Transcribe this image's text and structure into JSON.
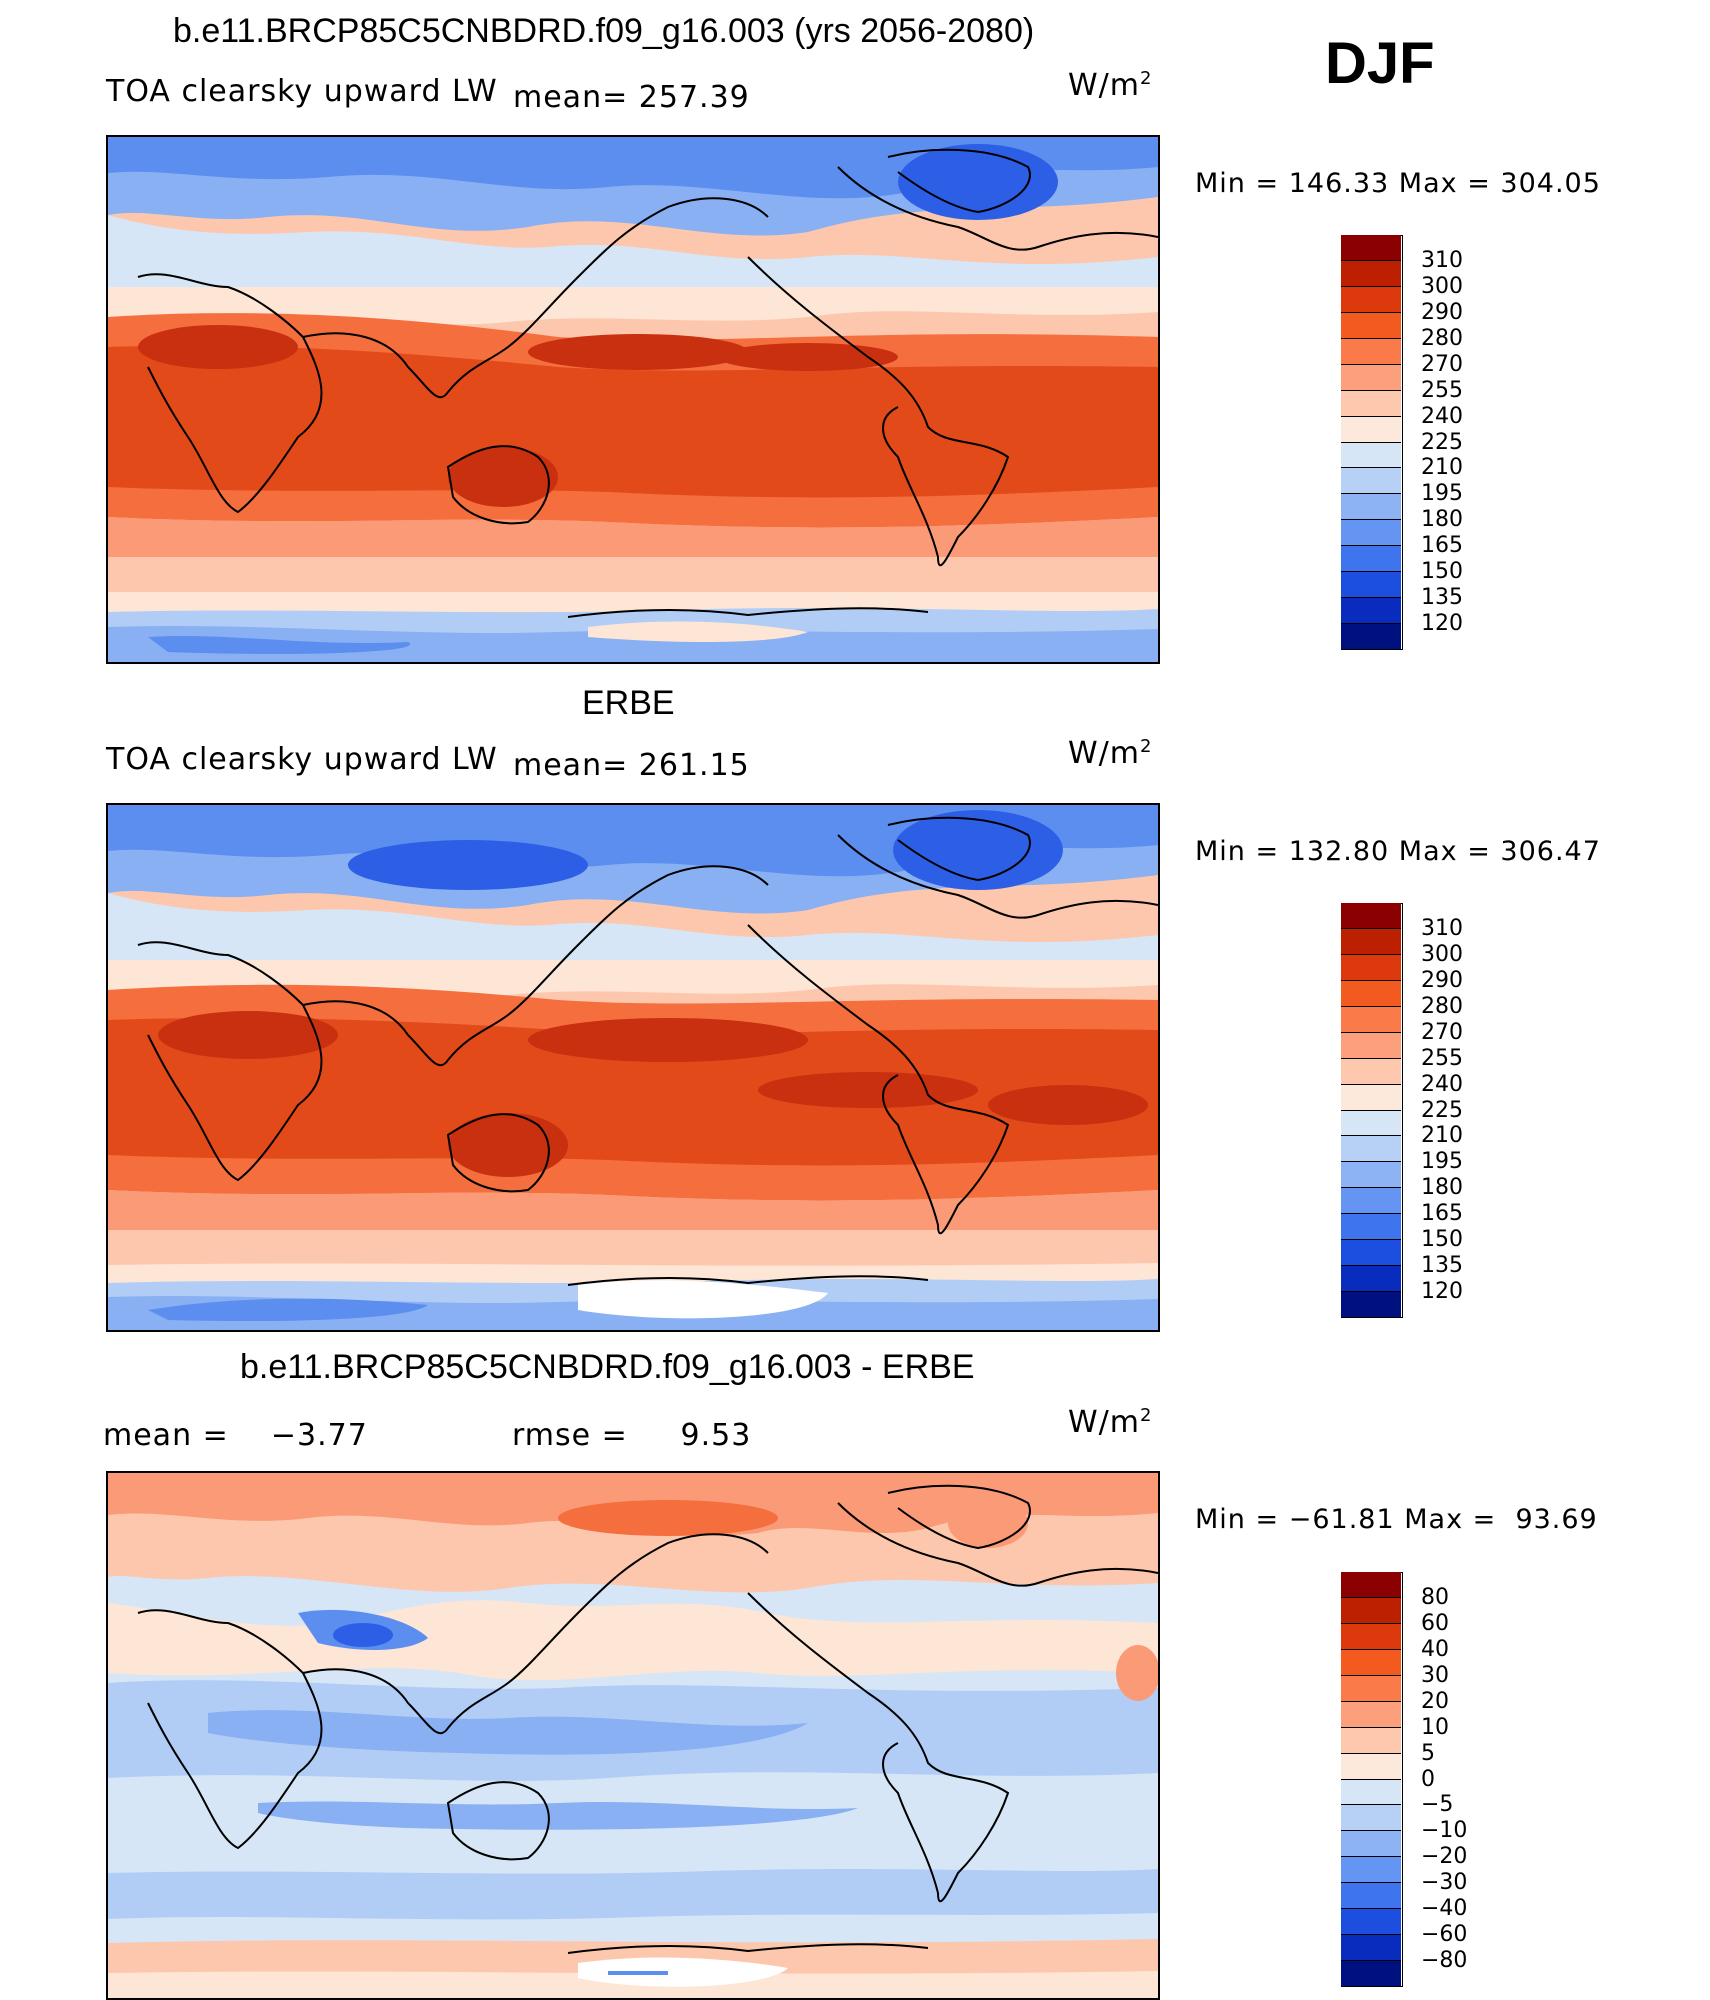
{
  "season": "DJF",
  "units": "W/m",
  "units_sup": "2",
  "panels": [
    {
      "id": "model",
      "title": "b.e11.BRCP85C5CNBDRD.f09_g16.003 (yrs 2056-2080)",
      "left_label": "TOA clearsky upward LW",
      "stat_label": "mean=",
      "stat_value": "257.39",
      "min_label": "Min",
      "min_value": "146.33",
      "max_label": "Max",
      "max_value": "304.05",
      "levels": [
        "310",
        "300",
        "290",
        "280",
        "270",
        "255",
        "240",
        "225",
        "210",
        "195",
        "180",
        "165",
        "150",
        "135",
        "120"
      ]
    },
    {
      "id": "obs",
      "title": "ERBE",
      "left_label": "TOA clearsky upward LW",
      "stat_label": "mean=",
      "stat_value": "261.15",
      "min_label": "Min",
      "min_value": "132.80",
      "max_label": "Max",
      "max_value": "306.47",
      "levels": [
        "310",
        "300",
        "290",
        "280",
        "270",
        "255",
        "240",
        "225",
        "210",
        "195",
        "180",
        "165",
        "150",
        "135",
        "120"
      ]
    },
    {
      "id": "diff",
      "title": "b.e11.BRCP85C5CNBDRD.f09_g16.003 - ERBE",
      "mean_label": "mean =",
      "mean_value": "−3.77",
      "rmse_label": "rmse =",
      "rmse_value": "9.53",
      "min_label": "Min",
      "min_value": "−61.81",
      "max_label": "Max",
      "max_value": "93.69",
      "levels": [
        "80",
        "60",
        "40",
        "30",
        "20",
        "10",
        "5",
        "0",
        "−5",
        "−10",
        "−20",
        "−30",
        "−40",
        "−60",
        "−80"
      ]
    }
  ],
  "colorbar_colors": [
    "#8b0000",
    "#bd2000",
    "#dc3a0c",
    "#f25a20",
    "#fa7b49",
    "#fc9f7c",
    "#fdc8ae",
    "#fde9db",
    "#d6e6f6",
    "#b6d0f6",
    "#8eb3f4",
    "#6495f2",
    "#3e74ee",
    "#1c4fe0",
    "#0a2cbe",
    "#00107f"
  ],
  "field_colors": {
    "deep_red": "#c83010",
    "red": "#e24a1a",
    "orange": "#f46e3e",
    "salmon": "#fb9a76",
    "peach": "#fdc7ad",
    "cream": "#fde6d5",
    "pale_blue": "#d6e6f6",
    "light_blue": "#b2cdf5",
    "blue": "#88b0f3",
    "mid_blue": "#5c8ef0",
    "deep_blue": "#2c5fe6"
  }
}
